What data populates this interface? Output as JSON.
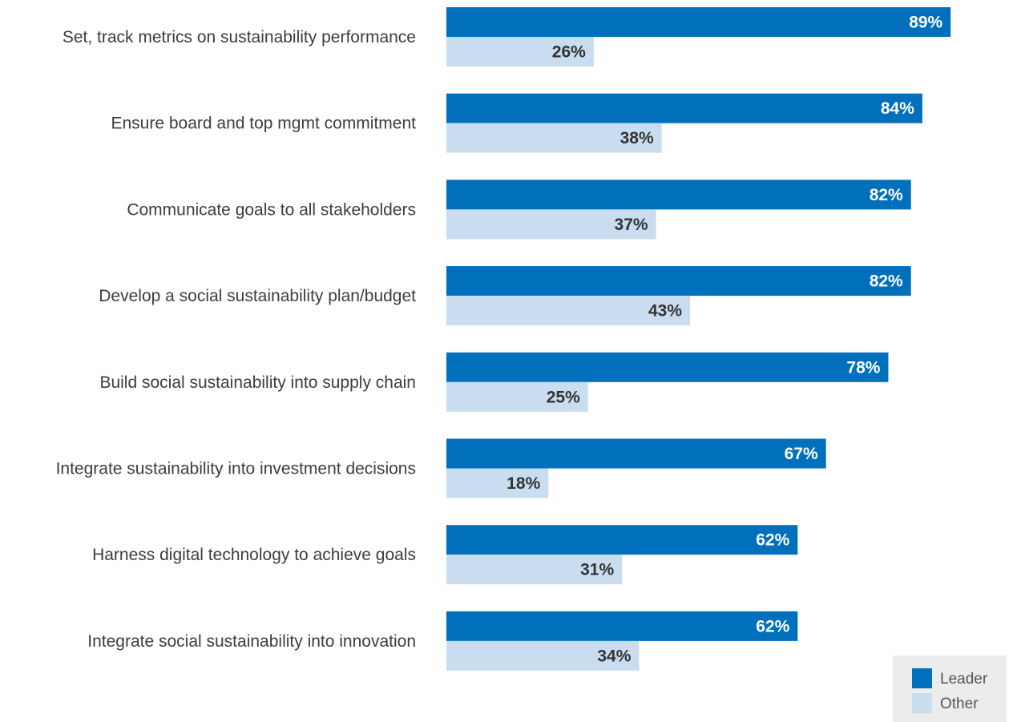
{
  "chart_data": {
    "type": "bar",
    "orientation": "horizontal",
    "categories": [
      "Set, track metrics on sustainability performance",
      "Ensure board and top mgmt commitment",
      "Communicate goals to all stakeholders",
      "Develop a social sustainability plan/budget",
      "Build social sustainability into supply chain",
      "Integrate sustainability into investment decisions",
      "Harness digital technology to achieve goals",
      "Integrate social sustainability into innovation"
    ],
    "series": [
      {
        "name": "Leader",
        "color": "#0070bd",
        "values": [
          89,
          84,
          82,
          82,
          78,
          67,
          62,
          62
        ]
      },
      {
        "name": "Other",
        "color": "#c9dcf0",
        "values": [
          26,
          38,
          37,
          43,
          25,
          18,
          31,
          34
        ]
      }
    ],
    "value_suffix": "%",
    "xlim": [
      0,
      100
    ],
    "grid": false,
    "legend_position": "bottom-right",
    "legend_background": "#ececec"
  }
}
